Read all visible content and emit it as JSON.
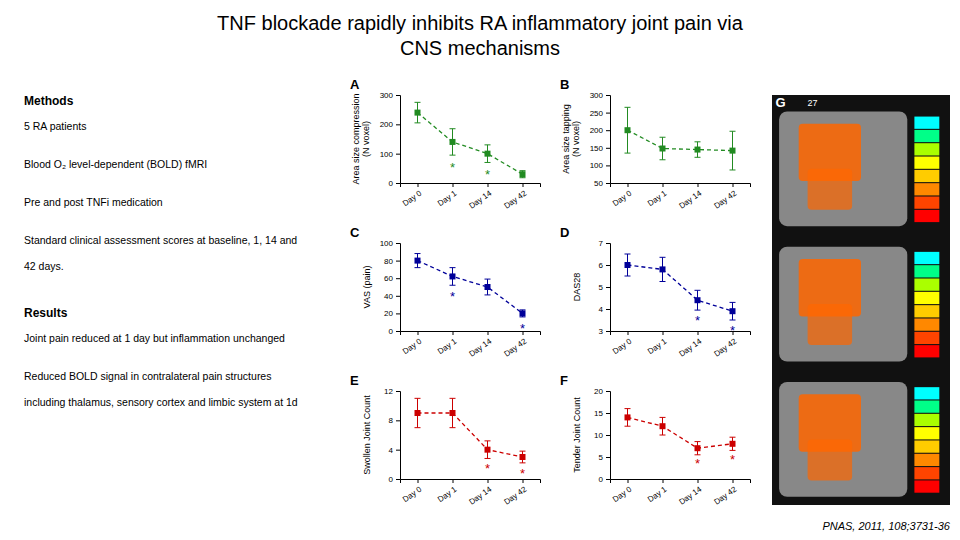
{
  "title": [
    "TNF blockade rapidly inhibits RA inflammatory joint pain via",
    "CNS mechanisms"
  ],
  "annotations": [
    {
      "header": "Methods",
      "paragraphs": [
        [
          "5 RA patients"
        ],
        [
          "Blood O₂ level-dependent (BOLD) fMRI"
        ],
        [
          "Pre and post TNFi medication"
        ],
        [
          "Standard clinical assessment scores at baseline, 1, 14 and",
          "42 days."
        ]
      ]
    },
    {
      "header": "Results",
      "paragraphs": [
        [
          "Joint pain reduced at 1 day but inflammation unchanged"
        ],
        [
          "Reduced BOLD signal in contralateral pain structures",
          "including thalamus, sensory cortex and limbic system at 1d"
        ]
      ]
    }
  ],
  "citation": "PNAS, 2011, 108;3731-36",
  "image": {
    "title": "G",
    "label": "27"
  },
  "chart_data": [
    {
      "type": "line",
      "title": "A",
      "y_label": "Area size compression\n(N voxel)",
      "categories": [
        "Day 0",
        "Day 1",
        "Day 14",
        "Day 42"
      ],
      "values": [
        240,
        140,
        100,
        30
      ],
      "errors": [
        35,
        45,
        30,
        12
      ],
      "color": "#228B22",
      "marker": "square",
      "line_style": "dashed",
      "ylim": [
        0,
        300
      ],
      "yticks": [
        0,
        100,
        200,
        300
      ],
      "annotations": [
        {
          "category": "Day 1",
          "text": "*"
        },
        {
          "category": "Day 14",
          "text": "*"
        }
      ]
    },
    {
      "type": "line",
      "title": "B",
      "y_label": "Area size tapping\n(N voxel)",
      "categories": [
        "Day 0",
        "Day 1",
        "Day 14",
        "Day 42"
      ],
      "values": [
        200,
        148,
        145,
        142
      ],
      "errors": [
        65,
        32,
        22,
        55
      ],
      "color": "#228B22",
      "marker": "square",
      "line_style": "dashed",
      "ylim": [
        50,
        300
      ],
      "yticks": [
        50,
        100,
        150,
        200,
        250,
        300
      ]
    },
    {
      "type": "line",
      "title": "C",
      "y_label": "VAS (pain)",
      "categories": [
        "Day 0",
        "Day 1",
        "Day 14",
        "Day 42"
      ],
      "values": [
        80,
        62,
        50,
        20
      ],
      "errors": [
        8,
        10,
        9,
        4
      ],
      "color": "#000099",
      "marker": "square",
      "line_style": "dashed",
      "ylim": [
        0,
        100
      ],
      "yticks": [
        0,
        20,
        40,
        60,
        80,
        100
      ],
      "annotations": [
        {
          "category": "Day 1",
          "text": "*"
        },
        {
          "category": "Day 42",
          "text": "*"
        }
      ]
    },
    {
      "type": "line",
      "title": "D",
      "y_label": "DAS28",
      "categories": [
        "Day 0",
        "Day 1",
        "Day 14",
        "Day 42"
      ],
      "values": [
        6.0,
        5.8,
        4.4,
        3.9
      ],
      "errors": [
        0.5,
        0.55,
        0.45,
        0.4
      ],
      "color": "#000099",
      "marker": "square",
      "line_style": "dashed",
      "ylim": [
        3,
        7
      ],
      "yticks": [
        3,
        4,
        5,
        6,
        7
      ],
      "annotations": [
        {
          "category": "Day 14",
          "text": "*"
        },
        {
          "category": "Day 42",
          "text": "*"
        }
      ]
    },
    {
      "type": "line",
      "title": "E",
      "y_label": "Swollen Joint Count",
      "categories": [
        "Day 0",
        "Day 1",
        "Day 14",
        "Day 42"
      ],
      "values": [
        9,
        9,
        4,
        3
      ],
      "errors": [
        2.0,
        2.0,
        1.2,
        0.8
      ],
      "color": "#cc0000",
      "marker": "square",
      "line_style": "dashed",
      "ylim": [
        0,
        12
      ],
      "yticks": [
        0,
        4,
        8,
        12
      ],
      "annotations": [
        {
          "category": "Day 14",
          "text": "*"
        },
        {
          "category": "Day 42",
          "text": "*"
        }
      ]
    },
    {
      "type": "line",
      "title": "F",
      "y_label": "Tender Joint Count",
      "categories": [
        "Day 0",
        "Day 1",
        "Day 14",
        "Day 42"
      ],
      "values": [
        14,
        12,
        7,
        8
      ],
      "errors": [
        2.0,
        2.0,
        1.5,
        1.5
      ],
      "color": "#cc0000",
      "marker": "square",
      "line_style": "dashed",
      "ylim": [
        0,
        20
      ],
      "yticks": [
        0,
        5,
        10,
        15,
        20
      ],
      "annotations": [
        {
          "category": "Day 14",
          "text": "*"
        },
        {
          "category": "Day 42",
          "text": "*"
        }
      ]
    }
  ]
}
